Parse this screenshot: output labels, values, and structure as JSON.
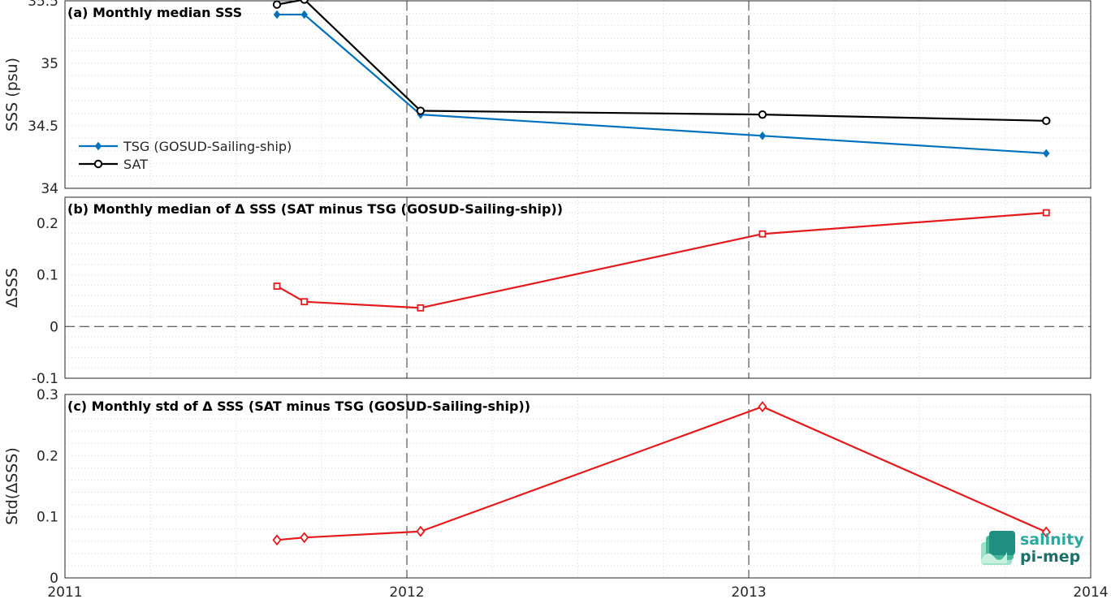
{
  "chart_data": [
    {
      "type": "line",
      "title": "(a) Monthly median SSS",
      "ylabel": "SSS (psu)",
      "ylim": [
        34,
        35.5
      ],
      "yticks": [
        "34",
        "34.5",
        "35",
        "35.5"
      ],
      "xlim": [
        2011,
        2014
      ],
      "grid": true,
      "legend_position": "bottom-left",
      "series": [
        {
          "name": "TSG (GOSUD-Sailing-ship)",
          "color": "#0072bd",
          "marker": "diamond",
          "x": [
            2011.62,
            2011.7,
            2012.04,
            2013.04,
            2013.87
          ],
          "values": [
            35.39,
            35.39,
            34.59,
            34.42,
            34.28
          ]
        },
        {
          "name": "SAT",
          "color": "#000000",
          "marker": "circle",
          "x": [
            2011.62,
            2011.7,
            2012.04,
            2013.04,
            2013.87
          ],
          "values": [
            35.47,
            35.51,
            34.62,
            34.59,
            34.54
          ]
        }
      ]
    },
    {
      "type": "line",
      "title": "(b) Monthly median of Δ SSS (SAT minus TSG (GOSUD-Sailing-ship))",
      "ylabel": "ΔSSS",
      "ylim": [
        -0.1,
        0.25
      ],
      "yticks": [
        "-0.1",
        "0",
        "0.1",
        "0.2"
      ],
      "xlim": [
        2011,
        2014
      ],
      "grid": true,
      "series": [
        {
          "color": "#e41a1c",
          "marker": "square",
          "x": [
            2011.62,
            2011.7,
            2012.04,
            2013.04,
            2013.87
          ],
          "values": [
            0.078,
            0.048,
            0.036,
            0.179,
            0.22
          ]
        }
      ]
    },
    {
      "type": "line",
      "title": "(c) Monthly std of Δ SSS (SAT minus TSG (GOSUD-Sailing-ship))",
      "ylabel": "Std(ΔSSS)",
      "ylim": [
        0,
        0.3
      ],
      "yticks": [
        "0",
        "0.1",
        "0.2",
        "0.3"
      ],
      "xlim": [
        2011,
        2014
      ],
      "xticks": [
        "2011",
        "2012",
        "2013",
        "2014"
      ],
      "grid": true,
      "series": [
        {
          "color": "#e41a1c",
          "marker": "diamond",
          "x": [
            2011.62,
            2011.7,
            2012.04,
            2013.04,
            2013.87
          ],
          "values": [
            0.062,
            0.066,
            0.076,
            0.28,
            0.075
          ]
        }
      ]
    }
  ],
  "logo": {
    "line1": "salinity",
    "line2": "pi-mep"
  }
}
